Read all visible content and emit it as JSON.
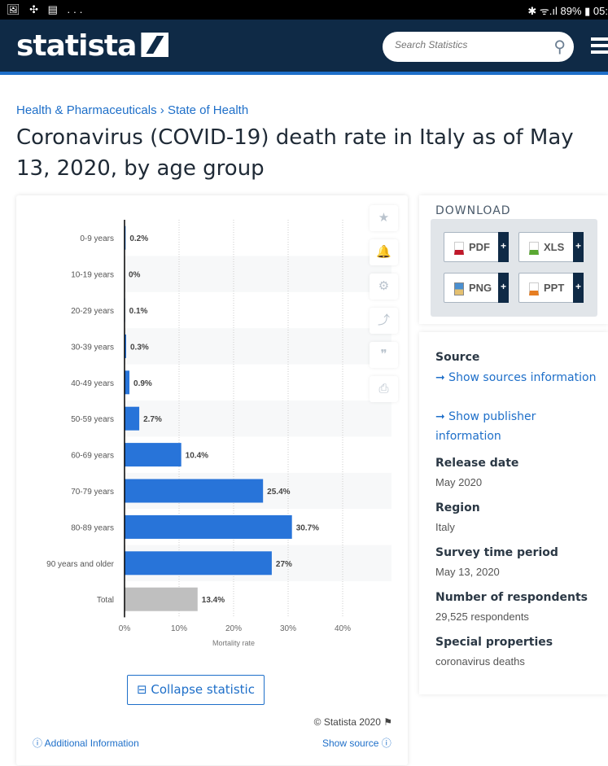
{
  "status_bar": {
    "left_icons": "🖼 ✣ ▤ ...",
    "right": "✱ ᯤ.ıl 89% ▮ 05:"
  },
  "header": {
    "logo": "statista",
    "search_placeholder": "Search Statistics"
  },
  "breadcrumb": {
    "items": [
      "Health & Pharmaceuticals",
      "State of Health"
    ],
    "separator": "›"
  },
  "title": "Coronavirus (COVID-19) death rate in Italy as of May 13, 2020, by age group",
  "chart_data": {
    "type": "bar",
    "orientation": "horizontal",
    "categories": [
      "0-9 years",
      "10-19 years",
      "20-29 years",
      "30-39 years",
      "40-49 years",
      "50-59 years",
      "60-69 years",
      "70-79 years",
      "80-89 years",
      "90 years and older",
      "Total"
    ],
    "values": [
      0.2,
      0,
      0.1,
      0.3,
      0.9,
      2.7,
      10.4,
      25.4,
      30.7,
      27,
      13.4
    ],
    "data_labels": [
      "0.2%",
      "0%",
      "0.1%",
      "0.3%",
      "0.9%",
      "2.7%",
      "10.4%",
      "25.4%",
      "30.7%",
      "27%",
      "13.4%"
    ],
    "xlabel": "Mortality rate",
    "xlim": [
      0,
      40
    ],
    "xticks": [
      "0%",
      "10%",
      "20%",
      "30%",
      "40%"
    ],
    "colors": {
      "bar": "#2874d9",
      "total": "#bfbfbf"
    },
    "grid": true
  },
  "card": {
    "collapse_label": "Collapse statistic",
    "copyright": "© Statista 2020 ⚑",
    "additional_info": "ⓘ Additional Information",
    "show_source": "Show source ⓘ"
  },
  "tools": [
    "★",
    "🔔",
    "⚙",
    "⤴",
    "❞",
    "⎙"
  ],
  "download": {
    "title": "DOWNLOAD",
    "buttons": [
      {
        "label": "PDF",
        "color": "#c0182a"
      },
      {
        "label": "XLS",
        "color": "#5aa832"
      },
      {
        "label": "PNG",
        "color": "#3a7fc0"
      },
      {
        "label": "PPT",
        "color": "#e67e22"
      }
    ],
    "plus": "+"
  },
  "info": {
    "source_h": "Source",
    "source_link1": "➞ Show sources information",
    "source_link2": "➞ Show publisher information",
    "release_h": "Release date",
    "release_v": "May 2020",
    "region_h": "Region",
    "region_v": "Italy",
    "period_h": "Survey time period",
    "period_v": "May 13, 2020",
    "resp_h": "Number of respondents",
    "resp_v": "29,525 respondents",
    "special_h": "Special properties",
    "special_v": "coronavirus deaths"
  }
}
